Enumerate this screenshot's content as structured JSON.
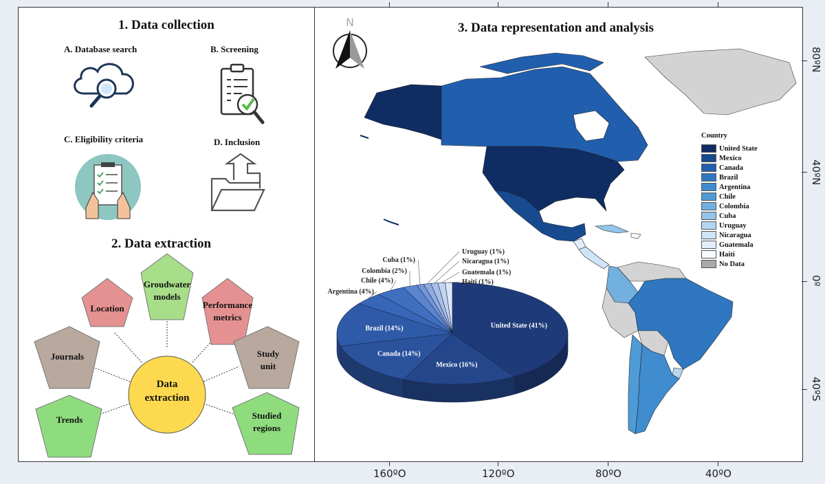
{
  "section1": {
    "title": "1. Data collection",
    "steps": [
      "A. Database search",
      "B. Screening",
      "C. Eligibility criteria",
      "D. Inclusion"
    ]
  },
  "section2": {
    "title": "2. Data extraction",
    "center_line1": "Data",
    "center_line2": "extraction",
    "nodes": [
      {
        "line1": "Groudwater",
        "line2": "models",
        "color": "#a8dd8a"
      },
      {
        "line1": "Location",
        "line2": "",
        "color": "#e59191"
      },
      {
        "line1": "Performance",
        "line2": "metrics",
        "color": "#e59191"
      },
      {
        "line1": "Journals",
        "line2": "",
        "color": "#b8a89d"
      },
      {
        "line1": "Study",
        "line2": "unit",
        "color": "#b8a89d"
      },
      {
        "line1": "Trends",
        "line2": "",
        "color": "#8fdc7f"
      },
      {
        "line1": "Studied",
        "line2": "regions",
        "color": "#8fdc7f"
      }
    ],
    "center_color": "#fcd94e"
  },
  "section3": {
    "title": "3. Data representation and analysis",
    "north": "N",
    "lon_ticks": [
      "160ºO",
      "120ºO",
      "80ºO",
      "40ºO"
    ],
    "lat_ticks": [
      "80ºN",
      "40ºN",
      "0º",
      "40ºS"
    ],
    "legend_title": "Country",
    "legend": [
      {
        "label": "United State",
        "color": "#0f2d63"
      },
      {
        "label": "Mexico",
        "color": "#174a8f"
      },
      {
        "label": "Canada",
        "color": "#215fae"
      },
      {
        "label": "Brazil",
        "color": "#2f77c0"
      },
      {
        "label": "Argentina",
        "color": "#3f8cce"
      },
      {
        "label": "Chile",
        "color": "#4f9bd6"
      },
      {
        "label": "Colombia",
        "color": "#72b0e0"
      },
      {
        "label": "Cuba",
        "color": "#93c4ea"
      },
      {
        "label": "Uruguay",
        "color": "#b5d6f1"
      },
      {
        "label": "Nicaragua",
        "color": "#cfe4f6"
      },
      {
        "label": "Guatemala",
        "color": "#e2eefa"
      },
      {
        "label": "Haiti",
        "color": "#f7fbff"
      },
      {
        "label": "No Data",
        "color": "#a9a9a9"
      }
    ]
  },
  "chart_data": {
    "type": "pie",
    "categories": [
      "United State",
      "Mexico",
      "Canada",
      "Brazil",
      "Argentina",
      "Chile",
      "Colombia",
      "Cuba",
      "Uruguay",
      "Nicaragua",
      "Guatemala",
      "Haiti"
    ],
    "values": [
      41,
      16,
      14,
      14,
      4,
      4,
      2,
      1,
      1,
      1,
      1,
      1
    ],
    "labels": [
      "United State (41%)",
      "Mexico (16%)",
      "Canada (14%)",
      "Brazil (14%)",
      "Argentina (4%)",
      "Chile (4%)",
      "Colombia (2%)",
      "Cuba (1%)",
      "Uruguay (1%)",
      "Nicaragua (1%)",
      "Guatemala (1%)",
      "Haiti (1%)"
    ],
    "colors": [
      "#1f3a78",
      "#24468b",
      "#2b529d",
      "#2f5aa8",
      "#3766b8",
      "#406fc0",
      "#5b86cf",
      "#7397d6",
      "#8fabdf",
      "#a9bfe7",
      "#c5d4ef",
      "#dde6f6"
    ]
  }
}
